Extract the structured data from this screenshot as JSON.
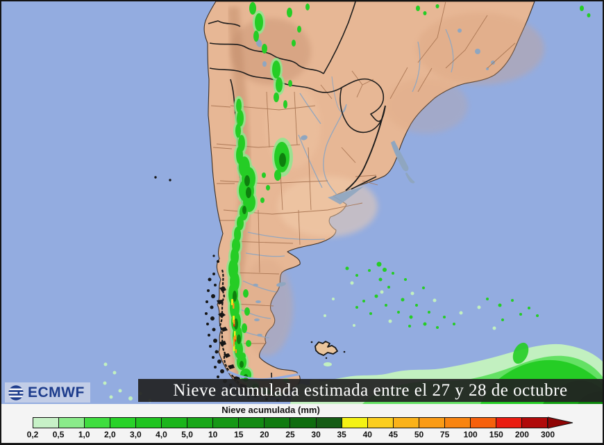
{
  "branding": {
    "logo_text": "ECMWF"
  },
  "title_bar": {
    "text": "Nieve acumulada estimada entre el 27 y 28 de octubre",
    "background": "rgba(34,34,34,0.93)"
  },
  "legend": {
    "title": "Nieve acumulada (mm)",
    "tick_labels": [
      "0,2",
      "0,5",
      "1,0",
      "2,0",
      "3,0",
      "4,0",
      "5,0",
      "10",
      "15",
      "20",
      "25",
      "30",
      "35",
      "40",
      "45",
      "50",
      "75",
      "100",
      "150",
      "200",
      "300"
    ],
    "segment_colors": [
      "#c7f1c7",
      "#8aeb8a",
      "#3fdd3f",
      "#28d228",
      "#1fc41f",
      "#1bb51b",
      "#18a718",
      "#169816",
      "#138a13",
      "#117b11",
      "#0e6c0e",
      "#155c15",
      "#f4f214",
      "#fbce1e",
      "#fab219",
      "#fa9b15",
      "#f88410",
      "#f6600c",
      "#ea1c10",
      "#b00a0a"
    ],
    "arrow_color": "#8f0505"
  },
  "map_colors": {
    "ocean": "#93ace0",
    "land": "#e7b795",
    "land_shade": "#c08a68",
    "border_country": "#1c1c1c",
    "border_province": "#a5714f",
    "water_feature": "#8fa6c0",
    "snow_pale": "#c2f0c0",
    "snow_light": "#8fe88f",
    "snow_bright": "#25cd25",
    "snow_mid": "#17a817",
    "snow_dark": "#0e7f0e",
    "snow_yellow": "#f2ee20",
    "snow_orange": "#f8981a",
    "snow_red": "#e02515",
    "logo_blue": "#1d3c8c",
    "titlebar_bg": "rgba(34,34,34,0.93)"
  }
}
